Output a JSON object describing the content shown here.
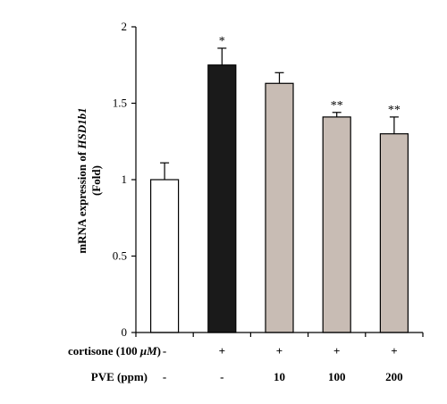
{
  "chart_data": {
    "type": "bar",
    "ylabel_prefix": "mRNA expression of ",
    "ylabel_gene": "HSD1b1",
    "ylabel_line2": "(Fold)",
    "ylim": [
      0,
      2
    ],
    "yticks": [
      "0",
      "0.5",
      "1",
      "1.5",
      "2"
    ],
    "ytick_values": [
      0,
      0.5,
      1,
      1.5,
      2
    ],
    "grid": false,
    "values": [
      1.0,
      1.75,
      1.63,
      1.41,
      1.3
    ],
    "errors": [
      0.11,
      0.11,
      0.07,
      0.03,
      0.11
    ],
    "significance": [
      "",
      "*",
      "",
      "**",
      "**"
    ],
    "bar_colors": [
      "#ffffff",
      "#1a1a1a",
      "#c8bcb4",
      "#c8bcb4",
      "#c8bcb4"
    ],
    "conditions": [
      {
        "label_prefix": "cortisone (100 ",
        "label_unit": "μM",
        "label_suffix": ")",
        "values": [
          "-",
          "+",
          "+",
          "+",
          "+"
        ]
      },
      {
        "label": "PVE (ppm)",
        "values": [
          "-",
          "-",
          "10",
          "100",
          "200"
        ]
      }
    ]
  }
}
